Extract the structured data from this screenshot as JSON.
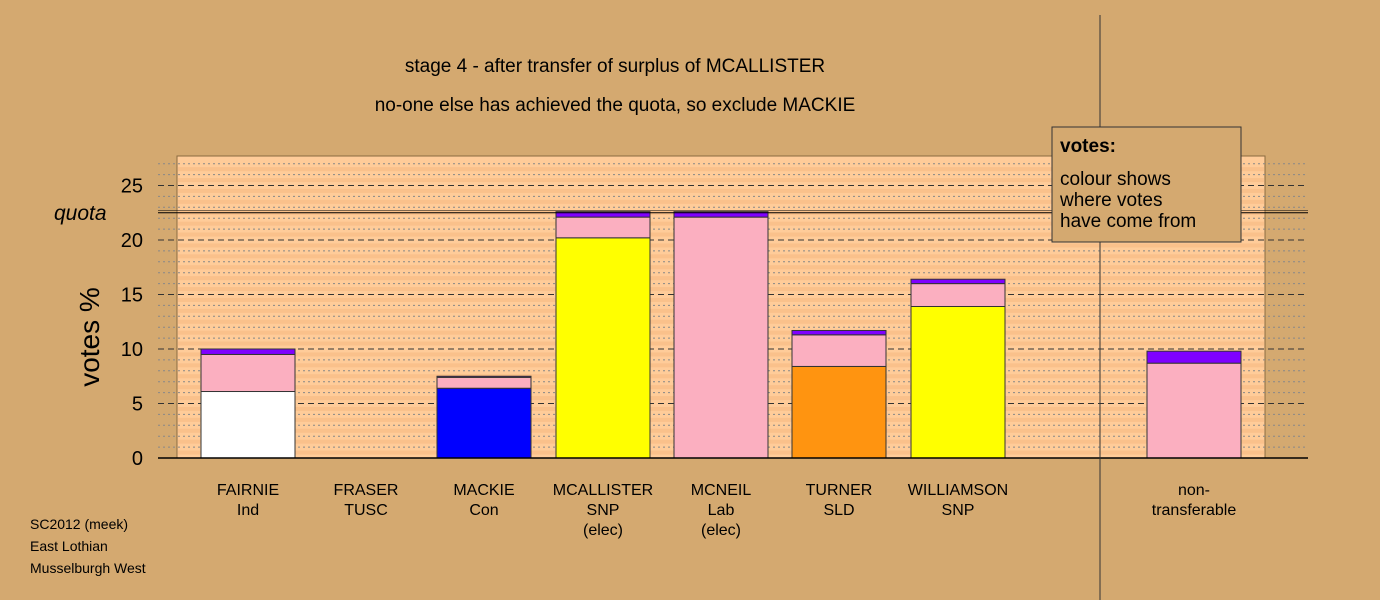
{
  "chart_data": {
    "type": "bar",
    "stacked": true,
    "title": "stage 4 - after transfer of surplus of MCALLISTER",
    "subtitle": "no-one else has achieved the quota, so exclude MACKIE",
    "ylabel": "votes %",
    "ylim": [
      0,
      27.5
    ],
    "yticks": [
      0,
      5,
      10,
      15,
      20,
      25
    ],
    "quota": 22.5,
    "quota_label": "quota",
    "grid": true,
    "categories": [
      {
        "name": "FAIRNIE",
        "lines": [
          "FAIRNIE",
          "Ind"
        ]
      },
      {
        "name": "FRASER",
        "lines": [
          "FRASER",
          "TUSC"
        ]
      },
      {
        "name": "MACKIE",
        "lines": [
          "MACKIE",
          "Con"
        ]
      },
      {
        "name": "MCALLISTER",
        "lines": [
          "MCALLISTER",
          "SNP",
          "(elec)"
        ]
      },
      {
        "name": "MCNEIL",
        "lines": [
          "MCNEIL",
          "Lab",
          "(elec)"
        ]
      },
      {
        "name": "TURNER",
        "lines": [
          "TURNER",
          "SLD"
        ]
      },
      {
        "name": "WILLIAMSON",
        "lines": [
          "WILLIAMSON",
          "SNP"
        ]
      },
      {
        "name": "non-transferable",
        "lines": [
          "non-",
          "transferable"
        ]
      }
    ],
    "stacks": [
      [
        {
          "value": 6.1,
          "color": "#FFFFFF"
        },
        {
          "value": 3.4,
          "color": "#FBAFC0"
        },
        {
          "value": 0.5,
          "color": "#7F00FF"
        }
      ],
      [],
      [
        {
          "value": 6.4,
          "color": "#0000FF"
        },
        {
          "value": 1.0,
          "color": "#FBAFC0"
        },
        {
          "value": 0.1,
          "color": "#7F00FF"
        }
      ],
      [
        {
          "value": 20.2,
          "color": "#FFFF00"
        },
        {
          "value": 1.9,
          "color": "#FBAFC0"
        },
        {
          "value": 0.5,
          "color": "#7F00FF"
        }
      ],
      [
        {
          "value": 22.1,
          "color": "#FBAFC0"
        },
        {
          "value": 0.5,
          "color": "#7F00FF"
        }
      ],
      [
        {
          "value": 8.4,
          "color": "#FF9410"
        },
        {
          "value": 2.9,
          "color": "#FBAFC0"
        },
        {
          "value": 0.4,
          "color": "#7F00FF"
        }
      ],
      [
        {
          "value": 13.9,
          "color": "#FFFF00"
        },
        {
          "value": 2.1,
          "color": "#FBAFC0"
        },
        {
          "value": 0.4,
          "color": "#7F00FF"
        }
      ],
      [
        {
          "value": 8.7,
          "color": "#FBAFC0"
        },
        {
          "value": 1.1,
          "color": "#7F00FF"
        }
      ]
    ],
    "legend": {
      "title": "votes:",
      "lines": [
        "colour shows",
        "where votes",
        "have come from"
      ],
      "placement": "top-right"
    }
  },
  "footer": [
    "SC2012 (meek)",
    "East Lothian",
    "Musselburgh West"
  ],
  "colors": {
    "background": "#D4A970",
    "plot_background": "#FFCC99",
    "plot_stripes": "#F6B982",
    "legend_background": "#D4A970"
  }
}
